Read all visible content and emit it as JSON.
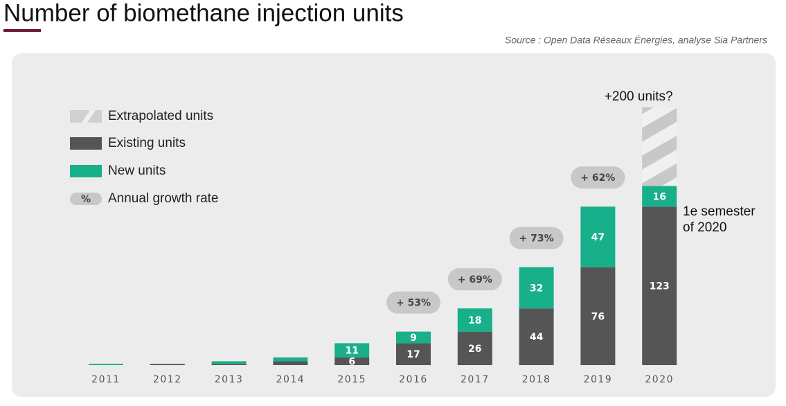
{
  "chart_data": {
    "type": "stacked-bar",
    "title": "Number of biomethane injection units",
    "source": "Source : Open Data Réseaux Énergies, analyse Sia Partners",
    "categories": [
      "2011",
      "2012",
      "2013",
      "2014",
      "2015",
      "2016",
      "2017",
      "2018",
      "2019",
      "2020"
    ],
    "series": [
      {
        "name": "Extrapolated units",
        "color": "#c8c8c8",
        "values": [
          null,
          null,
          null,
          null,
          null,
          null,
          null,
          null,
          null,
          61
        ]
      },
      {
        "name": "Existing units",
        "color": "#555555",
        "values": [
          0,
          1,
          1,
          3,
          6,
          17,
          26,
          44,
          76,
          123
        ]
      },
      {
        "name": "New units",
        "color": "#17b08a",
        "values": [
          1,
          0,
          2,
          3,
          11,
          9,
          18,
          32,
          47,
          16
        ]
      },
      {
        "name": "Annual growth rate",
        "color": "#c8c8c8",
        "marker_label": "%",
        "values": [
          null,
          null,
          null,
          null,
          null,
          53,
          69,
          73,
          62,
          null
        ],
        "value_labels": [
          null,
          null,
          null,
          null,
          null,
          "+ 53%",
          "+ 69%",
          "+ 73%",
          "+ 62%",
          null
        ]
      }
    ],
    "annotations": {
      "extrapolation": "+200 units?",
      "semester": [
        "1e semester",
        "of 2020"
      ]
    }
  }
}
